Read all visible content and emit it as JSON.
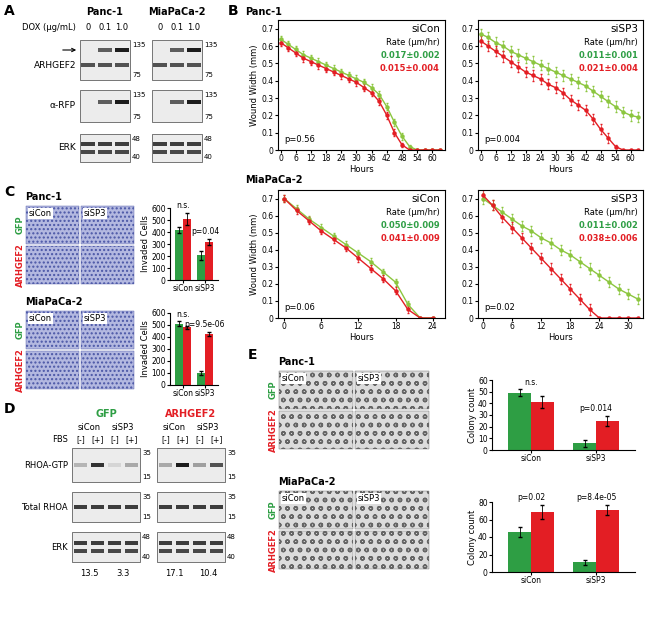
{
  "panel_labels": [
    "A",
    "B",
    "C",
    "D",
    "E"
  ],
  "blot_A": {
    "cell_lines": [
      "Panc-1",
      "MiaPaCa-2"
    ],
    "condition": "DOX (µg/mL)",
    "doses": [
      "0",
      "0.1",
      "1.0"
    ],
    "rows": [
      {
        "name": "ARHGEF2",
        "markers": [
          135,
          75
        ]
      },
      {
        "name": "α-RFP",
        "markers": [
          135,
          75
        ]
      },
      {
        "name": "ERK",
        "markers": [
          48,
          40
        ]
      }
    ]
  },
  "blot_D": {
    "groups": [
      {
        "name": "GFP",
        "color": "#2e9e44"
      },
      {
        "name": "ARHGEF2",
        "color": "#e31e24"
      }
    ],
    "treatments": [
      "siCon",
      "siSP3"
    ],
    "condition": "FBS",
    "states": [
      "[-]",
      "[+]"
    ],
    "rows": [
      {
        "name": "RHOA-GTP",
        "markers": [
          35,
          15
        ]
      },
      {
        "name": "Total RHOA",
        "markers": [
          35,
          15
        ]
      },
      {
        "name": "ERK",
        "markers": [
          48,
          40
        ]
      }
    ],
    "quantification": [
      13.5,
      3.3,
      17.1,
      10.4
    ]
  },
  "line_panel_rows": [
    "Panc-1",
    "MiaPaCa-2"
  ],
  "chart_data": [
    {
      "type": "line",
      "title": "siCon",
      "xlabel": "Hours",
      "ylabel": "Wound Width (mm)",
      "x": [
        0,
        3,
        6,
        9,
        12,
        15,
        18,
        21,
        24,
        27,
        30,
        33,
        36,
        39,
        42,
        45,
        48,
        51,
        54,
        57,
        60,
        63
      ],
      "xlim": [
        -1,
        65
      ],
      "xticks": [
        0,
        6,
        12,
        18,
        24,
        30,
        36,
        42,
        48,
        54,
        60
      ],
      "ylim": [
        0,
        0.75
      ],
      "yticks": [
        0,
        0.1,
        0.2,
        0.3,
        0.4,
        0.5,
        0.6,
        0.7
      ],
      "series": [
        {
          "name": "GFP",
          "color": "#8cc63f",
          "values": [
            0.64,
            0.61,
            0.58,
            0.55,
            0.53,
            0.51,
            0.49,
            0.47,
            0.45,
            0.43,
            0.41,
            0.39,
            0.36,
            0.32,
            0.25,
            0.16,
            0.08,
            0.02,
            0,
            0,
            0,
            0
          ],
          "errors": [
            0.02,
            0.02,
            0.02,
            0.02,
            0.02,
            0.02,
            0.02,
            0.02,
            0.02,
            0.02,
            0.02,
            0.02,
            0.02,
            0.02,
            0.02,
            0.02,
            0.02,
            0.01,
            0,
            0,
            0,
            0
          ]
        },
        {
          "name": "ARHGEF2",
          "color": "#e31e24",
          "values": [
            0.62,
            0.59,
            0.56,
            0.53,
            0.51,
            0.49,
            0.47,
            0.45,
            0.43,
            0.41,
            0.39,
            0.36,
            0.33,
            0.28,
            0.2,
            0.1,
            0.03,
            0,
            0,
            0,
            0,
            0
          ],
          "errors": [
            0.02,
            0.02,
            0.02,
            0.02,
            0.02,
            0.02,
            0.02,
            0.02,
            0.02,
            0.02,
            0.02,
            0.02,
            0.02,
            0.02,
            0.02,
            0.02,
            0.01,
            0,
            0,
            0,
            0,
            0
          ]
        }
      ],
      "annotations": [
        {
          "text": "Rate (µm/hr)",
          "color": "#000000"
        },
        {
          "text": "0.017±0.002",
          "color": "#2e9e44"
        },
        {
          "text": "0.015±0.004",
          "color": "#e31e24"
        }
      ],
      "p_value": "p=0.56"
    },
    {
      "type": "line",
      "title": "siSP3",
      "xlabel": "Hours",
      "x": [
        0,
        3,
        6,
        9,
        12,
        15,
        18,
        21,
        24,
        27,
        30,
        33,
        36,
        39,
        42,
        45,
        48,
        51,
        54,
        57,
        60,
        63
      ],
      "xlim": [
        -1,
        65
      ],
      "xticks": [
        0,
        6,
        12,
        18,
        24,
        30,
        36,
        42,
        48,
        54,
        60
      ],
      "ylim": [
        0,
        0.75
      ],
      "yticks": [
        0,
        0.1,
        0.2,
        0.3,
        0.4,
        0.5,
        0.6,
        0.7
      ],
      "series": [
        {
          "name": "GFP",
          "color": "#8cc63f",
          "values": [
            0.67,
            0.65,
            0.62,
            0.6,
            0.57,
            0.55,
            0.53,
            0.51,
            0.49,
            0.47,
            0.45,
            0.43,
            0.41,
            0.39,
            0.37,
            0.34,
            0.31,
            0.28,
            0.25,
            0.22,
            0.2,
            0.19
          ],
          "errors": [
            0.03,
            0.03,
            0.03,
            0.03,
            0.03,
            0.03,
            0.03,
            0.03,
            0.03,
            0.03,
            0.03,
            0.03,
            0.03,
            0.03,
            0.03,
            0.03,
            0.03,
            0.03,
            0.03,
            0.03,
            0.03,
            0.03
          ]
        },
        {
          "name": "ARHGEF2",
          "color": "#e31e24",
          "values": [
            0.63,
            0.6,
            0.57,
            0.54,
            0.51,
            0.48,
            0.45,
            0.43,
            0.41,
            0.38,
            0.36,
            0.33,
            0.29,
            0.26,
            0.23,
            0.18,
            0.12,
            0.07,
            0.02,
            0,
            0,
            0
          ],
          "errors": [
            0.03,
            0.03,
            0.03,
            0.03,
            0.03,
            0.03,
            0.03,
            0.03,
            0.03,
            0.03,
            0.03,
            0.03,
            0.03,
            0.03,
            0.03,
            0.03,
            0.03,
            0.03,
            0.01,
            0,
            0,
            0
          ]
        }
      ],
      "annotations": [
        {
          "text": "Rate (µm/hr)",
          "color": "#000000"
        },
        {
          "text": "0.011±0.001",
          "color": "#2e9e44"
        },
        {
          "text": "0.021±0.004",
          "color": "#e31e24"
        }
      ],
      "p_value": "p=0.004"
    },
    {
      "type": "line",
      "title": "siCon",
      "xlabel": "Hours",
      "ylabel": "Wound Width (mm)",
      "x": [
        0,
        2,
        4,
        6,
        8,
        10,
        12,
        14,
        16,
        18,
        20,
        22,
        24
      ],
      "xlim": [
        -1,
        26
      ],
      "xticks": [
        0,
        6,
        12,
        18,
        24
      ],
      "ylim": [
        0,
        0.75
      ],
      "yticks": [
        0,
        0.1,
        0.2,
        0.3,
        0.4,
        0.5,
        0.6,
        0.7
      ],
      "series": [
        {
          "name": "GFP",
          "color": "#8cc63f",
          "values": [
            0.7,
            0.64,
            0.58,
            0.53,
            0.48,
            0.43,
            0.38,
            0.33,
            0.27,
            0.21,
            0.08,
            0,
            0
          ],
          "errors": [
            0.02,
            0.02,
            0.02,
            0.02,
            0.02,
            0.02,
            0.02,
            0.02,
            0.02,
            0.02,
            0.02,
            0,
            0
          ]
        },
        {
          "name": "ARHGEF2",
          "color": "#e31e24",
          "values": [
            0.7,
            0.63,
            0.57,
            0.51,
            0.46,
            0.41,
            0.35,
            0.29,
            0.23,
            0.16,
            0.05,
            0,
            0
          ],
          "errors": [
            0.02,
            0.02,
            0.02,
            0.02,
            0.02,
            0.02,
            0.02,
            0.02,
            0.02,
            0.02,
            0.02,
            0,
            0
          ]
        }
      ],
      "annotations": [
        {
          "text": "Rate (µm/hr)",
          "color": "#000000"
        },
        {
          "text": "0.050±0.009",
          "color": "#2e9e44"
        },
        {
          "text": "0.041±0.009",
          "color": "#e31e24"
        }
      ],
      "p_value": "p=0.06"
    },
    {
      "type": "line",
      "title": "siSP3",
      "xlabel": "Hours",
      "x": [
        0,
        2,
        4,
        6,
        8,
        10,
        12,
        14,
        16,
        18,
        20,
        22,
        24,
        26,
        28,
        30,
        32
      ],
      "xlim": [
        -1,
        33
      ],
      "xticks": [
        0,
        6,
        12,
        18,
        24,
        30
      ],
      "ylim": [
        0,
        0.75
      ],
      "yticks": [
        0,
        0.1,
        0.2,
        0.3,
        0.4,
        0.5,
        0.6,
        0.7
      ],
      "series": [
        {
          "name": "GFP",
          "color": "#8cc63f",
          "values": [
            0.7,
            0.66,
            0.62,
            0.58,
            0.54,
            0.51,
            0.47,
            0.44,
            0.4,
            0.37,
            0.33,
            0.29,
            0.25,
            0.21,
            0.17,
            0.14,
            0.11
          ],
          "errors": [
            0.03,
            0.03,
            0.03,
            0.03,
            0.03,
            0.03,
            0.03,
            0.03,
            0.03,
            0.03,
            0.03,
            0.03,
            0.03,
            0.03,
            0.03,
            0.03,
            0.03
          ]
        },
        {
          "name": "ARHGEF2",
          "color": "#e31e24",
          "values": [
            0.72,
            0.66,
            0.59,
            0.53,
            0.47,
            0.41,
            0.35,
            0.29,
            0.23,
            0.17,
            0.11,
            0.05,
            0,
            0,
            0,
            0,
            0
          ],
          "errors": [
            0.03,
            0.03,
            0.03,
            0.03,
            0.03,
            0.03,
            0.03,
            0.03,
            0.03,
            0.03,
            0.03,
            0.03,
            0,
            0,
            0,
            0,
            0
          ]
        }
      ],
      "annotations": [
        {
          "text": "Rate (µm/hr)",
          "color": "#000000"
        },
        {
          "text": "0.011±0.002",
          "color": "#2e9e44"
        },
        {
          "text": "0.038±0.006",
          "color": "#e31e24"
        }
      ],
      "p_value": "p=0.02"
    },
    {
      "type": "bar",
      "title": "Panc-1",
      "ylabel": "Invaded Cells",
      "categories": [
        "siCon",
        "siSP3"
      ],
      "ylim": [
        0,
        600
      ],
      "yticks": [
        0,
        100,
        200,
        300,
        400,
        500,
        600
      ],
      "series": [
        {
          "name": "GFP",
          "color": "#2e9e44",
          "values": [
            420,
            205
          ],
          "errors": [
            25,
            40
          ]
        },
        {
          "name": "ARHGEF2",
          "color": "#e31e24",
          "values": [
            510,
            320
          ],
          "errors": [
            50,
            25
          ]
        }
      ],
      "significance": [
        "n.s.",
        "p=0.04"
      ]
    },
    {
      "type": "bar",
      "title": "MiaPaCa-2",
      "ylabel": "Invaded Cells",
      "categories": [
        "siCon",
        "siSP3"
      ],
      "ylim": [
        0,
        600
      ],
      "yticks": [
        0,
        100,
        200,
        300,
        400,
        500,
        600
      ],
      "series": [
        {
          "name": "GFP",
          "color": "#2e9e44",
          "values": [
            510,
            100
          ],
          "errors": [
            20,
            20
          ]
        },
        {
          "name": "ARHGEF2",
          "color": "#e31e24",
          "values": [
            480,
            425
          ],
          "errors": [
            10,
            15
          ]
        }
      ],
      "significance": [
        "n.s.",
        "p=9.5e-06"
      ]
    },
    {
      "type": "bar",
      "title": "Panc-1",
      "ylabel": "Colony count",
      "categories": [
        "siCon",
        "siSP3"
      ],
      "ylim": [
        0,
        60
      ],
      "yticks": [
        0,
        10,
        20,
        30,
        40,
        50,
        60
      ],
      "series": [
        {
          "name": "GFP",
          "color": "#2e9e44",
          "values": [
            49,
            6
          ],
          "errors": [
            3,
            3
          ]
        },
        {
          "name": "ARHGEF2",
          "color": "#e31e24",
          "values": [
            41,
            25
          ],
          "errors": [
            5,
            4
          ]
        }
      ],
      "significance": [
        "n.s.",
        "p=0.014"
      ]
    },
    {
      "type": "bar",
      "title": "MiaPaCa-2",
      "ylabel": "Colony count",
      "categories": [
        "siCon",
        "siSP3"
      ],
      "ylim": [
        0,
        80
      ],
      "yticks": [
        0,
        20,
        40,
        60,
        80
      ],
      "series": [
        {
          "name": "GFP",
          "color": "#2e9e44",
          "values": [
            46,
            11
          ],
          "errors": [
            6,
            3
          ]
        },
        {
          "name": "ARHGEF2",
          "color": "#e31e24",
          "values": [
            69,
            71
          ],
          "errors": [
            8,
            6
          ]
        }
      ],
      "significance": [
        "p=0.02",
        "p=8.4e-05"
      ]
    }
  ]
}
